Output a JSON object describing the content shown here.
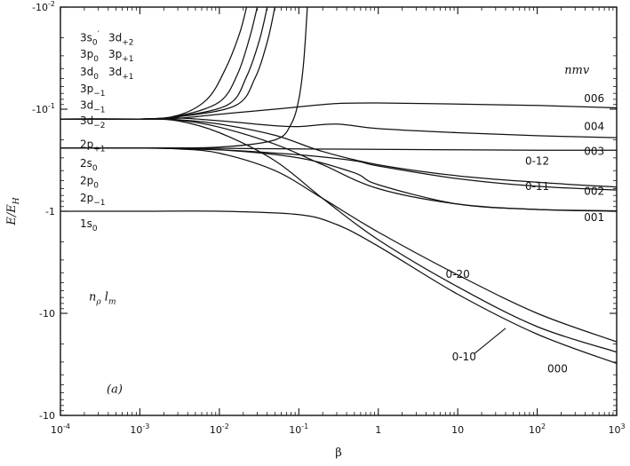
{
  "chart_data": {
    "type": "line",
    "xlabel": "β",
    "ylabel": "E/E",
    "ylabel_sub": "H",
    "x_scale": "log",
    "x_ticks": [
      {
        "value": 0.0001,
        "base": "10",
        "exp": "-4"
      },
      {
        "value": 0.001,
        "base": "10",
        "exp": "-3"
      },
      {
        "value": 0.01,
        "base": "10",
        "exp": "-2"
      },
      {
        "value": 0.1,
        "base": "10",
        "exp": "-1"
      },
      {
        "value": 1,
        "base": "1",
        "exp": ""
      },
      {
        "value": 10,
        "base": "10",
        "exp": ""
      },
      {
        "value": 100,
        "base": "10",
        "exp": "2"
      },
      {
        "value": 1000,
        "base": "10",
        "exp": "3"
      }
    ],
    "xlim": [
      0.0001,
      1000
    ],
    "y_ticks": [
      {
        "value": -0.01,
        "base": "-10",
        "exp": "-2"
      },
      {
        "value": -0.1,
        "base": "-10",
        "exp": "-1"
      },
      {
        "value": -1,
        "base": "-1",
        "exp": ""
      },
      {
        "value": -10,
        "base": "-10",
        "exp": ""
      },
      {
        "value": -100,
        "base": "-10",
        "exp": ""
      }
    ],
    "ylim_magnitude": [
      0.01,
      100
    ],
    "panel_label": "(a)",
    "state_labels_left": [
      {
        "text": "3s",
        "sub": "0",
        "prime": "′",
        "y": -0.02
      },
      {
        "text": "3p",
        "sub": "0",
        "y": -0.029
      },
      {
        "text": "3d",
        "sub": "0",
        "y": -0.043
      },
      {
        "text": "3p",
        "sub": "−1",
        "y": -0.063
      },
      {
        "text": "3d",
        "sub": "−1",
        "y": -0.091
      },
      {
        "text": "3d",
        "sub": "−2",
        "y": -0.13
      },
      {
        "text": "2p",
        "sub": "+1",
        "y": -0.22
      },
      {
        "text": "2s",
        "sub": "0",
        "y": -0.34
      },
      {
        "text": "2p",
        "sub": "0",
        "y": -0.5
      },
      {
        "text": "2p",
        "sub": "−1",
        "y": -0.74
      },
      {
        "text": "1s",
        "sub": "0",
        "y": -1.32
      }
    ],
    "state_labels_left2": [
      {
        "text": "3d",
        "sub": "+2",
        "y": -0.02
      },
      {
        "text": "3p",
        "sub": "+1",
        "y": -0.029
      },
      {
        "text": "3d",
        "sub": "+1",
        "y": -0.043
      }
    ],
    "legend_title": "nmv",
    "legend_left_title": "n",
    "legend_left_title_sub": "ρ",
    "legend_left_title2": "l",
    "legend_left_title2_sub": "m",
    "series": [
      {
        "name": "006",
        "label_pos": [
          700,
          -0.085
        ],
        "x": [
          0.0001,
          0.001,
          0.003,
          0.01,
          0.05,
          0.1,
          0.3,
          1,
          10,
          100,
          1000
        ],
        "y": [
          -0.125,
          -0.125,
          -0.123,
          -0.112,
          -0.1,
          -0.095,
          -0.088,
          -0.087,
          -0.089,
          -0.092,
          -0.097
        ],
        "dashed_segment": [
          0.05,
          0.12
        ]
      },
      {
        "name": "004",
        "label_pos": [
          700,
          -0.16
        ],
        "x": [
          0.0001,
          0.001,
          0.003,
          0.01,
          0.05,
          0.1,
          0.3,
          1,
          10,
          100,
          1000
        ],
        "y": [
          -0.125,
          -0.125,
          -0.122,
          -0.13,
          -0.145,
          -0.148,
          -0.14,
          -0.155,
          -0.17,
          -0.182,
          -0.19
        ]
      },
      {
        "name": "003",
        "label_pos": [
          700,
          -0.28
        ],
        "x": [
          0.0001,
          0.001,
          0.01,
          0.1,
          1,
          10,
          100,
          1000
        ],
        "y": [
          -0.24,
          -0.24,
          -0.242,
          -0.245,
          -0.247,
          -0.25,
          -0.252,
          -0.252
        ]
      },
      {
        "name": "0-12",
        "label_pos": [
          100,
          -0.35
        ],
        "x": [
          0.0001,
          0.001,
          0.003,
          0.01,
          0.05,
          0.2,
          1,
          10,
          100,
          1000
        ],
        "y": [
          -0.125,
          -0.125,
          -0.127,
          -0.14,
          -0.18,
          -0.26,
          -0.35,
          -0.45,
          -0.52,
          -0.58
        ]
      },
      {
        "name": "002",
        "label_pos": [
          700,
          -0.69
        ],
        "x": [
          0.0001,
          0.001,
          0.01,
          0.1,
          0.5,
          1,
          10,
          100,
          1000
        ],
        "y": [
          -0.24,
          -0.24,
          -0.25,
          -0.28,
          -0.32,
          -0.36,
          -0.48,
          -0.57,
          -0.62
        ]
      },
      {
        "name": "0-11",
        "label_pos": [
          100,
          -0.62
        ],
        "x": [
          0.0001,
          0.001,
          0.003,
          0.01,
          0.05,
          0.2,
          1,
          10,
          100,
          1000
        ],
        "y": [
          -0.125,
          -0.125,
          -0.128,
          -0.15,
          -0.22,
          -0.35,
          -0.6,
          -0.85,
          -0.96,
          -1.0
        ]
      },
      {
        "name": "001",
        "label_pos": [
          700,
          -1.25
        ],
        "x": [
          0.0001,
          0.001,
          0.01,
          0.1,
          0.5,
          1,
          10,
          100,
          1000
        ],
        "y": [
          -0.24,
          -0.24,
          -0.25,
          -0.3,
          -0.42,
          -0.55,
          -0.85,
          -0.96,
          -0.99
        ]
      },
      {
        "name": "0-20",
        "label_pos": [
          10,
          -4.5
        ],
        "x": [
          0.0001,
          0.001,
          0.003,
          0.01,
          0.05,
          0.2,
          1,
          10,
          100,
          1000
        ],
        "y": [
          -0.24,
          -0.24,
          -0.245,
          -0.27,
          -0.4,
          -0.75,
          -1.6,
          -4.2,
          -10,
          -19
        ]
      },
      {
        "name": "0-10",
        "label_pos": [
          12,
          -29
        ],
        "x": [
          0.0001,
          0.001,
          0.003,
          0.01,
          0.05,
          0.2,
          1,
          10,
          100,
          1000
        ],
        "y": [
          -0.125,
          -0.125,
          -0.13,
          -0.17,
          -0.32,
          -0.75,
          -1.9,
          -5.5,
          -13.5,
          -24
        ]
      },
      {
        "name": "000",
        "label_pos": [
          180,
          -38
        ],
        "x": [
          0.0001,
          0.001,
          0.01,
          0.1,
          0.3,
          1,
          10,
          100,
          1000
        ],
        "y": [
          -1.0,
          -1.0,
          -1.0,
          -1.08,
          -1.35,
          -2.2,
          -6.5,
          -16,
          -31
        ]
      },
      {
        "name": "",
        "x": [
          0.0001,
          0.001,
          0.003,
          0.007,
          0.012,
          0.018,
          0.022
        ],
        "y": [
          -0.125,
          -0.125,
          -0.115,
          -0.08,
          -0.04,
          -0.018,
          -0.01
        ]
      },
      {
        "name": "",
        "x": [
          0.0001,
          0.001,
          0.003,
          0.01,
          0.017,
          0.024,
          0.03
        ],
        "y": [
          -0.125,
          -0.125,
          -0.117,
          -0.085,
          -0.045,
          -0.02,
          -0.01
        ]
      },
      {
        "name": "",
        "x": [
          0.0001,
          0.001,
          0.003,
          0.013,
          0.022,
          0.032,
          0.04
        ],
        "y": [
          -0.125,
          -0.125,
          -0.118,
          -0.09,
          -0.048,
          -0.021,
          -0.01
        ]
      },
      {
        "name": "",
        "x": [
          0.0001,
          0.001,
          0.003,
          0.016,
          0.028,
          0.04,
          0.05
        ],
        "y": [
          -0.125,
          -0.125,
          -0.119,
          -0.092,
          -0.05,
          -0.022,
          -0.01
        ]
      },
      {
        "name": "",
        "x": [
          0.0001,
          0.001,
          0.01,
          0.05,
          0.08,
          0.1,
          0.115,
          0.128
        ],
        "y": [
          -0.24,
          -0.24,
          -0.235,
          -0.2,
          -0.14,
          -0.08,
          -0.035,
          -0.01
        ]
      }
    ]
  }
}
